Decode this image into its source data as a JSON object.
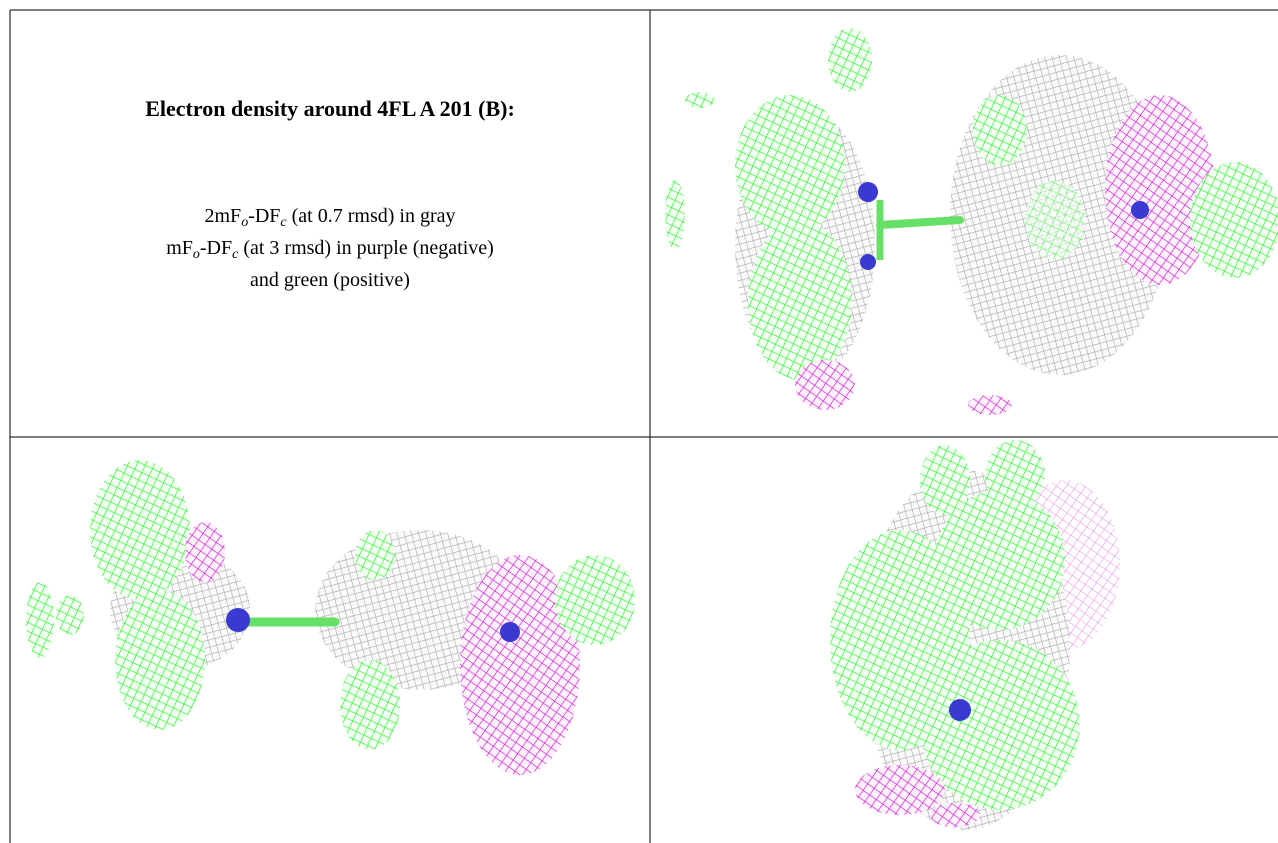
{
  "title": "Electron density around 4FL A 201 (B):",
  "description": [
    [
      {
        "text": "2mF"
      },
      {
        "sub": "o"
      },
      {
        "text": "-DF"
      },
      {
        "sub": "c"
      },
      {
        "text": " (at 0.7 rmsd) in gray"
      }
    ],
    [
      {
        "text": "mF"
      },
      {
        "sub": "o"
      },
      {
        "text": "-DF"
      },
      {
        "sub": "c"
      },
      {
        "text": " (at 3 rmsd) in purple (negative)"
      }
    ],
    [
      {
        "text": "and green (positive)"
      }
    ]
  ]
}
